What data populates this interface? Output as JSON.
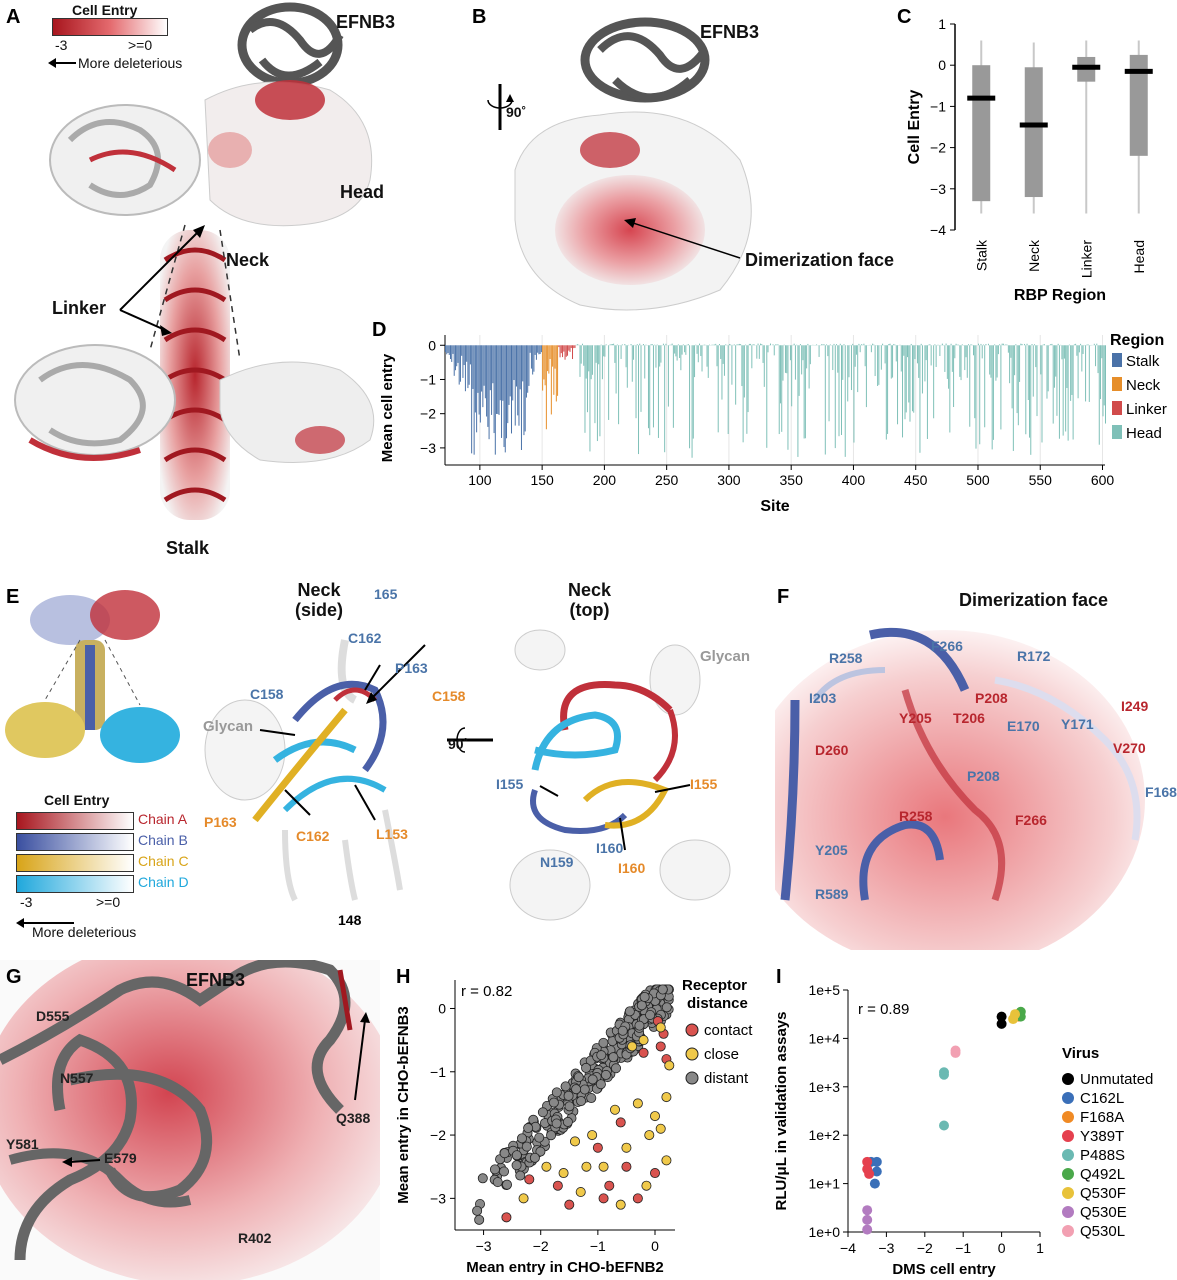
{
  "panels": {
    "A": {
      "letter": "A",
      "scale_title": "Cell Entry",
      "scale_min": "-3",
      "scale_max": ">=0",
      "scale_arrow": "More deleterious",
      "labels": [
        "EFNB3",
        "Head",
        "Neck",
        "Linker",
        "Stalk"
      ]
    },
    "B": {
      "letter": "B",
      "rotation": "90˚",
      "labels": [
        "EFNB3",
        "Dimerization face"
      ]
    },
    "C": {
      "letter": "C"
    },
    "D": {
      "letter": "D"
    },
    "E": {
      "letter": "E",
      "scale_title": "Cell Entry",
      "chains": [
        {
          "name": "Chain A",
          "color": "#b8262e"
        },
        {
          "name": "Chain B",
          "color": "#4a5fa8"
        },
        {
          "name": "Chain C",
          "color": "#e0b024"
        },
        {
          "name": "Chain D",
          "color": "#35b3e0"
        }
      ],
      "scale_min": "-3",
      "scale_max": ">=0",
      "scale_arrow": "More deleterious",
      "side_title": "Neck\n(side)",
      "top_title": "Neck\n(top)",
      "rotation": "90˚",
      "glycan": "Glycan",
      "side_residues": [
        {
          "text": "165",
          "cls": "blue"
        },
        {
          "text": "C162",
          "cls": "blue"
        },
        {
          "text": "P163",
          "cls": "blue"
        },
        {
          "text": "C158",
          "cls": "blue"
        },
        {
          "text": "C158",
          "cls": "orange"
        },
        {
          "text": "P163",
          "cls": "orange"
        },
        {
          "text": "C162",
          "cls": "orange"
        },
        {
          "text": "L153",
          "cls": "orange"
        },
        {
          "text": "148",
          "cls": "black"
        }
      ],
      "top_residues": [
        {
          "text": "I155",
          "cls": "blue"
        },
        {
          "text": "I155",
          "cls": "orange"
        },
        {
          "text": "N159",
          "cls": "blue"
        },
        {
          "text": "I160",
          "cls": "blue"
        },
        {
          "text": "I160",
          "cls": "orange"
        }
      ]
    },
    "F": {
      "letter": "F",
      "title": "Dimerization face",
      "residues": [
        {
          "text": "R258",
          "cls": "blue"
        },
        {
          "text": "F266",
          "cls": "blue"
        },
        {
          "text": "R172",
          "cls": "blue"
        },
        {
          "text": "I203",
          "cls": "blue"
        },
        {
          "text": "P208",
          "cls": "red"
        },
        {
          "text": "Y205",
          "cls": "red"
        },
        {
          "text": "T206",
          "cls": "red"
        },
        {
          "text": "E170",
          "cls": "blue"
        },
        {
          "text": "Y171",
          "cls": "blue"
        },
        {
          "text": "I249",
          "cls": "red"
        },
        {
          "text": "V270",
          "cls": "red"
        },
        {
          "text": "D260",
          "cls": "red"
        },
        {
          "text": "P208",
          "cls": "blue"
        },
        {
          "text": "F168",
          "cls": "blue"
        },
        {
          "text": "R258",
          "cls": "red"
        },
        {
          "text": "F266",
          "cls": "red"
        },
        {
          "text": "Y205",
          "cls": "blue"
        },
        {
          "text": "R589",
          "cls": "blue"
        }
      ]
    },
    "G": {
      "letter": "G",
      "title": "EFNB3",
      "residues": [
        "D555",
        "N557",
        "Y581",
        "E579",
        "Q388",
        "R402"
      ]
    },
    "H": {
      "letter": "H"
    },
    "I": {
      "letter": "I"
    }
  },
  "chart_data": [
    {
      "panel": "C",
      "type": "box",
      "categories": [
        "Stalk",
        "Neck",
        "Linker",
        "Head"
      ],
      "boxes": [
        {
          "min": -3.6,
          "q1": -3.3,
          "median": -0.8,
          "q3": 0.0,
          "max": 0.6
        },
        {
          "min": -3.6,
          "q1": -3.2,
          "median": -1.45,
          "q3": -0.05,
          "max": 0.55
        },
        {
          "min": -3.6,
          "q1": -0.4,
          "median": -0.05,
          "q3": 0.2,
          "max": 0.6
        },
        {
          "min": -3.6,
          "q1": -2.2,
          "median": -0.15,
          "q3": 0.25,
          "max": 0.6
        }
      ],
      "ylabel": "Cell Entry",
      "xlabel": "RBP Region",
      "ylim": [
        -4,
        1
      ],
      "yticks": [
        "1",
        "0",
        "−1",
        "−2",
        "−3",
        "−4"
      ],
      "color": "#999999"
    },
    {
      "panel": "D",
      "type": "bar",
      "ylabel": "Mean cell entry",
      "xlabel": "Site",
      "xlim": [
        72,
        602
      ],
      "ylim": [
        -3.5,
        0.3
      ],
      "xticks": [
        "100",
        "150",
        "200",
        "250",
        "300",
        "350",
        "400",
        "450",
        "500",
        "550",
        "600"
      ],
      "yticks": [
        "0",
        "−1",
        "−2",
        "−3"
      ],
      "legend_title": "Region",
      "regions": [
        {
          "name": "Stalk",
          "start": 72,
          "end": 149,
          "color": "#4a72a8"
        },
        {
          "name": "Neck",
          "start": 150,
          "end": 162,
          "color": "#e68e2a"
        },
        {
          "name": "Linker",
          "start": 163,
          "end": 176,
          "color": "#d14b4b"
        },
        {
          "name": "Head",
          "start": 177,
          "end": 602,
          "color": "#7fc0b8"
        }
      ]
    },
    {
      "panel": "H",
      "type": "scatter",
      "annotation": "r = 0.82",
      "xlabel": "Mean entry in CHO-bEFNB2",
      "ylabel": "Mean entry in CHO-bEFNB3",
      "xlim": [
        -3.5,
        0.35
      ],
      "ylim": [
        -3.5,
        0.45
      ],
      "xticks": [
        "−3",
        "−2",
        "−1",
        "0"
      ],
      "yticks": [
        "0",
        "−1",
        "−2",
        "−3"
      ],
      "legend_title": "Receptor\ndistance",
      "groups": [
        {
          "name": "contact",
          "color": "#d9534f",
          "points": [
            [
              -2.2,
              -2.7
            ],
            [
              -1.7,
              -2.8
            ],
            [
              -1.5,
              -3.1
            ],
            [
              -1.0,
              -2.2
            ],
            [
              -0.8,
              -2.8
            ],
            [
              -0.5,
              -2.5
            ],
            [
              -0.3,
              -3.0
            ],
            [
              0.0,
              -2.6
            ],
            [
              0.2,
              -0.8
            ],
            [
              0.1,
              -0.6
            ],
            [
              -0.2,
              -0.7
            ],
            [
              0.15,
              -0.4
            ],
            [
              -2.6,
              -3.3
            ],
            [
              -0.6,
              -1.8
            ],
            [
              -0.9,
              -3.0
            ],
            [
              0.05,
              -0.2
            ]
          ]
        },
        {
          "name": "close",
          "color": "#f0c94a",
          "points": [
            [
              -1.9,
              -2.5
            ],
            [
              -1.6,
              -2.6
            ],
            [
              -1.3,
              -2.9
            ],
            [
              -1.1,
              -2.0
            ],
            [
              -0.9,
              -2.5
            ],
            [
              -0.7,
              -1.6
            ],
            [
              -0.5,
              -2.2
            ],
            [
              -0.3,
              -1.5
            ],
            [
              -0.1,
              -2.0
            ],
            [
              0.1,
              -1.9
            ],
            [
              0.2,
              -2.4
            ],
            [
              -1.4,
              -2.1
            ],
            [
              -0.6,
              -3.1
            ],
            [
              0.25,
              -0.9
            ],
            [
              0.1,
              -0.3
            ],
            [
              -0.2,
              -0.5
            ],
            [
              0.2,
              -1.4
            ],
            [
              -2.3,
              -3.0
            ],
            [
              -0.4,
              -0.6
            ],
            [
              0.0,
              -1.7
            ],
            [
              -1.2,
              -2.5
            ],
            [
              -0.15,
              -2.8
            ]
          ]
        },
        {
          "name": "distant",
          "color": "#888888",
          "n": 330
        }
      ]
    },
    {
      "panel": "I",
      "type": "scatter",
      "annotation": "r = 0.89",
      "xlabel": "DMS cell entry",
      "ylabel": "RLU/μL in validation assays",
      "xlim": [
        -4,
        1
      ],
      "ylim": [
        0,
        5
      ],
      "log_y": true,
      "xticks": [
        "−4",
        "−3",
        "−2",
        "−1",
        "0",
        "1"
      ],
      "yticks": [
        "1e+5",
        "1e+4",
        "1e+3",
        "1e+2",
        "1e+1",
        "1e+0"
      ],
      "legend_title": "Virus",
      "groups": [
        {
          "name": "Unmutated",
          "color": "#000000",
          "points": [
            [
              0.0,
              4.45
            ],
            [
              0.0,
              4.3
            ]
          ]
        },
        {
          "name": "C162L",
          "color": "#3a6fb8",
          "points": [
            [
              -3.4,
              1.45
            ],
            [
              -3.25,
              1.45
            ],
            [
              -3.25,
              1.25
            ],
            [
              -3.3,
              1.0
            ]
          ]
        },
        {
          "name": "F168A",
          "color": "#f08a24",
          "points": [
            [
              0.4,
              4.5
            ],
            [
              0.45,
              4.45
            ]
          ]
        },
        {
          "name": "Y389T",
          "color": "#e5404e",
          "points": [
            [
              -3.5,
              1.45
            ],
            [
              -3.5,
              1.3
            ],
            [
              -3.45,
              1.2
            ]
          ]
        },
        {
          "name": "P488S",
          "color": "#6ab9b2",
          "points": [
            [
              -1.5,
              3.3
            ],
            [
              -1.5,
              3.25
            ],
            [
              -1.5,
              2.2
            ]
          ]
        },
        {
          "name": "Q492L",
          "color": "#4aa84a",
          "points": [
            [
              0.5,
              4.55
            ],
            [
              0.5,
              4.45
            ]
          ]
        },
        {
          "name": "Q530F",
          "color": "#e8c23a",
          "points": [
            [
              0.35,
              4.5
            ],
            [
              0.3,
              4.4
            ]
          ]
        },
        {
          "name": "Q530E",
          "color": "#b27bc0",
          "points": [
            [
              -3.5,
              0.45
            ],
            [
              -3.5,
              0.25
            ],
            [
              -3.5,
              0.05
            ]
          ]
        },
        {
          "name": "Q530L",
          "color": "#f2a0b2",
          "points": [
            [
              -1.2,
              3.7
            ],
            [
              -1.2,
              3.75
            ]
          ]
        }
      ]
    }
  ]
}
